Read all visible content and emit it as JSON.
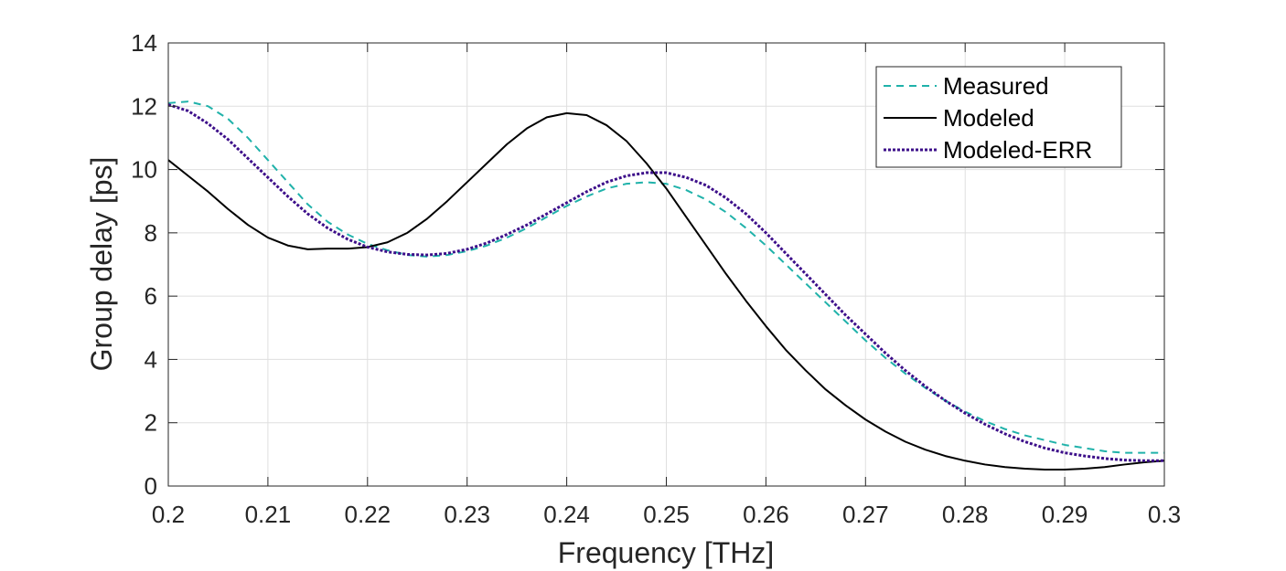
{
  "chart_data": {
    "type": "line",
    "title": "",
    "xlabel": "Frequency [THz]",
    "ylabel": "Group delay [ps]",
    "xlim": [
      0.2,
      0.3
    ],
    "ylim": [
      0,
      14
    ],
    "xticks": [
      0.2,
      0.21,
      0.22,
      0.23,
      0.24,
      0.25,
      0.26,
      0.27,
      0.28,
      0.29,
      0.3
    ],
    "xtick_labels": [
      "0.2",
      "0.21",
      "0.22",
      "0.23",
      "0.24",
      "0.25",
      "0.26",
      "0.27",
      "0.28",
      "0.29",
      "0.3"
    ],
    "yticks": [
      0,
      2,
      4,
      6,
      8,
      10,
      12,
      14
    ],
    "ytick_labels": [
      "0",
      "2",
      "4",
      "6",
      "8",
      "10",
      "12",
      "14"
    ],
    "grid": true,
    "legend_position": "top-right",
    "series": [
      {
        "name": "Measured",
        "color": "#20b2aa",
        "style": "dashed",
        "x": [
          0.2,
          0.202,
          0.204,
          0.206,
          0.208,
          0.21,
          0.212,
          0.214,
          0.216,
          0.218,
          0.22,
          0.222,
          0.224,
          0.226,
          0.228,
          0.23,
          0.232,
          0.234,
          0.236,
          0.238,
          0.24,
          0.242,
          0.244,
          0.246,
          0.248,
          0.25,
          0.252,
          0.254,
          0.256,
          0.258,
          0.26,
          0.262,
          0.264,
          0.266,
          0.268,
          0.27,
          0.272,
          0.274,
          0.276,
          0.278,
          0.28,
          0.282,
          0.284,
          0.286,
          0.288,
          0.29,
          0.292,
          0.294,
          0.296,
          0.298,
          0.3
        ],
        "y": [
          12.1,
          12.15,
          12.0,
          11.6,
          11.0,
          10.3,
          9.6,
          8.9,
          8.35,
          7.95,
          7.65,
          7.45,
          7.3,
          7.25,
          7.3,
          7.42,
          7.6,
          7.85,
          8.15,
          8.5,
          8.85,
          9.15,
          9.4,
          9.55,
          9.6,
          9.55,
          9.35,
          9.05,
          8.65,
          8.15,
          7.6,
          7.0,
          6.4,
          5.8,
          5.2,
          4.6,
          4.05,
          3.55,
          3.1,
          2.7,
          2.35,
          2.05,
          1.8,
          1.6,
          1.45,
          1.3,
          1.2,
          1.1,
          1.05,
          1.05,
          1.05
        ]
      },
      {
        "name": "Modeled",
        "color": "#000000",
        "style": "solid",
        "x": [
          0.2,
          0.202,
          0.204,
          0.206,
          0.208,
          0.21,
          0.212,
          0.214,
          0.216,
          0.218,
          0.22,
          0.222,
          0.224,
          0.226,
          0.228,
          0.23,
          0.232,
          0.234,
          0.236,
          0.238,
          0.24,
          0.242,
          0.244,
          0.246,
          0.248,
          0.25,
          0.252,
          0.254,
          0.256,
          0.258,
          0.26,
          0.262,
          0.264,
          0.266,
          0.268,
          0.27,
          0.272,
          0.274,
          0.276,
          0.278,
          0.28,
          0.282,
          0.284,
          0.286,
          0.288,
          0.29,
          0.292,
          0.294,
          0.296,
          0.298,
          0.3
        ],
        "y": [
          10.3,
          9.8,
          9.3,
          8.75,
          8.25,
          7.85,
          7.6,
          7.48,
          7.5,
          7.5,
          7.55,
          7.7,
          8.0,
          8.45,
          9.0,
          9.6,
          10.2,
          10.8,
          11.3,
          11.65,
          11.78,
          11.72,
          11.4,
          10.9,
          10.2,
          9.4,
          8.5,
          7.6,
          6.7,
          5.85,
          5.05,
          4.3,
          3.65,
          3.05,
          2.55,
          2.1,
          1.72,
          1.4,
          1.15,
          0.95,
          0.8,
          0.68,
          0.6,
          0.55,
          0.52,
          0.52,
          0.55,
          0.6,
          0.68,
          0.75,
          0.8
        ]
      },
      {
        "name": "Modeled-ERR",
        "color": "#3d0f8a",
        "style": "dotted",
        "x": [
          0.2,
          0.202,
          0.204,
          0.206,
          0.208,
          0.21,
          0.212,
          0.214,
          0.216,
          0.218,
          0.22,
          0.222,
          0.224,
          0.226,
          0.228,
          0.23,
          0.232,
          0.234,
          0.236,
          0.238,
          0.24,
          0.242,
          0.244,
          0.246,
          0.248,
          0.25,
          0.252,
          0.254,
          0.256,
          0.258,
          0.26,
          0.262,
          0.264,
          0.266,
          0.268,
          0.27,
          0.272,
          0.274,
          0.276,
          0.278,
          0.28,
          0.282,
          0.284,
          0.286,
          0.288,
          0.29,
          0.292,
          0.294,
          0.296,
          0.298,
          0.3
        ],
        "y": [
          12.05,
          11.85,
          11.45,
          10.95,
          10.35,
          9.75,
          9.15,
          8.6,
          8.15,
          7.8,
          7.55,
          7.4,
          7.32,
          7.3,
          7.35,
          7.48,
          7.68,
          7.95,
          8.25,
          8.6,
          8.95,
          9.3,
          9.6,
          9.8,
          9.9,
          9.9,
          9.75,
          9.5,
          9.1,
          8.6,
          8.0,
          7.35,
          6.7,
          6.05,
          5.4,
          4.8,
          4.2,
          3.65,
          3.15,
          2.7,
          2.3,
          1.95,
          1.65,
          1.4,
          1.2,
          1.05,
          0.95,
          0.87,
          0.82,
          0.8,
          0.8
        ]
      }
    ]
  }
}
